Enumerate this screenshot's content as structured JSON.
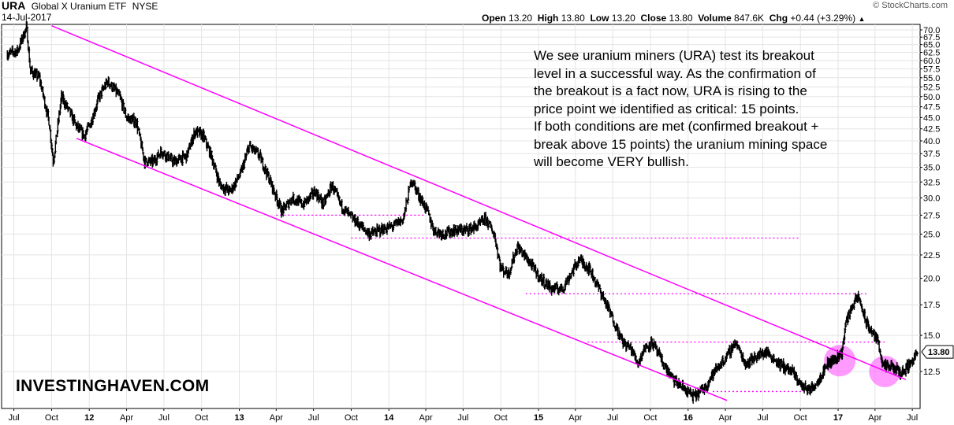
{
  "header": {
    "symbol": "URA",
    "name": "Global X Uranium ETF",
    "exchange": "NYSE",
    "date": "14-Jul-2017",
    "watermark": "© StockCharts.com",
    "stats": [
      {
        "label": "Open",
        "value": "13.20"
      },
      {
        "label": "High",
        "value": "13.80"
      },
      {
        "label": "Low",
        "value": "13.20"
      },
      {
        "label": "Close",
        "value": "13.80"
      },
      {
        "label": "Volume",
        "value": "847.6K"
      },
      {
        "label": "Chg",
        "value": "+0.44 (+3.29%)",
        "arrow": "up-triangle-icon"
      }
    ]
  },
  "annotation": {
    "lines": [
      "We see uranium miners (URA) test its breakout",
      "level in a successful way. As the confirmation of",
      "the breakout is a fact now, URA is rising to the",
      "price point we identified as critical: 15 points.",
      "If both conditions are met (confirmed breakout +",
      "break above 15 points) the uranium mining space",
      "will become VERY bullish."
    ]
  },
  "brand": "INVESTINGHAVEN.COM",
  "colors": {
    "channel": "#ff00ff",
    "circle": "#ff66ff",
    "bars": "#000000",
    "grid": "#e4e4e4"
  },
  "chart_data": {
    "type": "line",
    "description_series": "URA daily price (OHLC bars)",
    "x_ticks": [
      {
        "t": "2011-07-01",
        "label": "Jul",
        "bold": false
      },
      {
        "t": "2011-10-01",
        "label": "Oct",
        "bold": false
      },
      {
        "t": "2012-01-01",
        "label": "12",
        "bold": true
      },
      {
        "t": "2012-04-01",
        "label": "Apr",
        "bold": false
      },
      {
        "t": "2012-07-01",
        "label": "Jul",
        "bold": false
      },
      {
        "t": "2012-10-01",
        "label": "Oct",
        "bold": false
      },
      {
        "t": "2013-01-01",
        "label": "13",
        "bold": true
      },
      {
        "t": "2013-04-01",
        "label": "Apr",
        "bold": false
      },
      {
        "t": "2013-07-01",
        "label": "Jul",
        "bold": false
      },
      {
        "t": "2013-10-01",
        "label": "Oct",
        "bold": false
      },
      {
        "t": "2014-01-01",
        "label": "14",
        "bold": true
      },
      {
        "t": "2014-04-01",
        "label": "Apr",
        "bold": false
      },
      {
        "t": "2014-07-01",
        "label": "Jul",
        "bold": false
      },
      {
        "t": "2014-10-01",
        "label": "Oct",
        "bold": false
      },
      {
        "t": "2015-01-01",
        "label": "15",
        "bold": true
      },
      {
        "t": "2015-04-01",
        "label": "Apr",
        "bold": false
      },
      {
        "t": "2015-07-01",
        "label": "Jul",
        "bold": false
      },
      {
        "t": "2015-10-01",
        "label": "Oct",
        "bold": false
      },
      {
        "t": "2016-01-01",
        "label": "16",
        "bold": true
      },
      {
        "t": "2016-04-01",
        "label": "Apr",
        "bold": false
      },
      {
        "t": "2016-07-01",
        "label": "Jul",
        "bold": false
      },
      {
        "t": "2016-10-01",
        "label": "Oct",
        "bold": false
      },
      {
        "t": "2017-01-01",
        "label": "17",
        "bold": true
      },
      {
        "t": "2017-04-01",
        "label": "Apr",
        "bold": false
      },
      {
        "t": "2017-07-01",
        "label": "Jul",
        "bold": false
      }
    ],
    "y_ticks": [
      "70.0",
      "67.5",
      "65.0",
      "62.5",
      "60.0",
      "57.5",
      "55.0",
      "52.5",
      "50.0",
      "47.5",
      "45.0",
      "42.5",
      "40.0",
      "37.5",
      "35.0",
      "32.5",
      "30.0",
      "27.5",
      "25.0",
      "22.5",
      "20.0",
      "17.5",
      "15.0",
      "12.5"
    ],
    "y_scale": "log",
    "ylim": [
      10.8,
      71.5
    ],
    "last_price_label": "13.80",
    "price_anchors": [
      [
        "2011-06-15",
        62
      ],
      [
        "2011-07-10",
        63
      ],
      [
        "2011-08-01",
        71
      ],
      [
        "2011-08-10",
        57
      ],
      [
        "2011-09-01",
        55
      ],
      [
        "2011-09-25",
        44
      ],
      [
        "2011-10-05",
        36
      ],
      [
        "2011-10-25",
        50
      ],
      [
        "2011-11-15",
        46
      ],
      [
        "2011-12-01",
        43
      ],
      [
        "2011-12-20",
        41
      ],
      [
        "2012-01-05",
        44
      ],
      [
        "2012-01-25",
        50
      ],
      [
        "2012-02-15",
        54
      ],
      [
        "2012-03-01",
        52
      ],
      [
        "2012-03-15",
        50
      ],
      [
        "2012-04-01",
        45
      ],
      [
        "2012-04-25",
        44
      ],
      [
        "2012-05-15",
        36
      ],
      [
        "2012-06-05",
        36
      ],
      [
        "2012-06-25",
        38
      ],
      [
        "2012-07-25",
        36
      ],
      [
        "2012-08-25",
        37
      ],
      [
        "2012-09-15",
        42
      ],
      [
        "2012-10-05",
        41
      ],
      [
        "2012-10-25",
        37
      ],
      [
        "2012-11-15",
        32
      ],
      [
        "2012-12-10",
        31
      ],
      [
        "2013-01-05",
        34
      ],
      [
        "2013-01-25",
        39
      ],
      [
        "2013-02-20",
        37
      ],
      [
        "2013-03-15",
        33
      ],
      [
        "2013-04-15",
        28
      ],
      [
        "2013-05-10",
        30
      ],
      [
        "2013-06-05",
        29
      ],
      [
        "2013-07-05",
        31
      ],
      [
        "2013-07-25",
        29
      ],
      [
        "2013-08-15",
        32
      ],
      [
        "2013-09-05",
        29
      ],
      [
        "2013-09-25",
        27.5
      ],
      [
        "2013-10-25",
        26
      ],
      [
        "2013-11-15",
        25
      ],
      [
        "2013-12-10",
        25.5
      ],
      [
        "2014-01-10",
        26
      ],
      [
        "2014-02-05",
        27
      ],
      [
        "2014-02-25",
        33
      ],
      [
        "2014-03-10",
        31
      ],
      [
        "2014-04-05",
        28
      ],
      [
        "2014-04-20",
        25.5
      ],
      [
        "2014-05-15",
        25
      ],
      [
        "2014-06-10",
        25.5
      ],
      [
        "2014-07-05",
        25.5
      ],
      [
        "2014-08-05",
        26
      ],
      [
        "2014-08-25",
        27
      ],
      [
        "2014-09-15",
        25
      ],
      [
        "2014-10-01",
        21
      ],
      [
        "2014-10-20",
        20.5
      ],
      [
        "2014-11-10",
        23.5
      ],
      [
        "2014-12-05",
        22
      ],
      [
        "2015-01-05",
        20
      ],
      [
        "2015-02-01",
        19
      ],
      [
        "2015-03-01",
        19
      ],
      [
        "2015-04-10",
        22
      ],
      [
        "2015-05-05",
        21
      ],
      [
        "2015-06-10",
        18
      ],
      [
        "2015-07-05",
        16
      ],
      [
        "2015-07-25",
        14.5
      ],
      [
        "2015-08-15",
        14
      ],
      [
        "2015-09-01",
        13
      ],
      [
        "2015-09-15",
        14
      ],
      [
        "2015-10-05",
        14.5
      ],
      [
        "2015-11-01",
        13
      ],
      [
        "2015-11-25",
        12
      ],
      [
        "2015-12-20",
        11.5
      ],
      [
        "2016-01-15",
        11
      ],
      [
        "2016-02-10",
        11.5
      ],
      [
        "2016-03-05",
        12.5
      ],
      [
        "2016-04-05",
        13.5
      ],
      [
        "2016-04-25",
        14.5
      ],
      [
        "2016-05-20",
        13
      ],
      [
        "2016-06-15",
        13.5
      ],
      [
        "2016-07-10",
        13.8
      ],
      [
        "2016-08-10",
        13
      ],
      [
        "2016-09-10",
        12.5
      ],
      [
        "2016-10-05",
        11.6
      ],
      [
        "2016-10-25",
        11.4
      ],
      [
        "2016-11-15",
        12
      ],
      [
        "2016-12-05",
        13
      ],
      [
        "2016-12-25",
        13.3
      ],
      [
        "2017-01-10",
        13.8
      ],
      [
        "2017-01-20",
        16
      ],
      [
        "2017-02-05",
        17.5
      ],
      [
        "2017-02-20",
        18.2
      ],
      [
        "2017-03-10",
        16
      ],
      [
        "2017-03-25",
        15.2
      ],
      [
        "2017-04-10",
        14.5
      ],
      [
        "2017-04-20",
        12.8
      ],
      [
        "2017-05-10",
        12.8
      ],
      [
        "2017-06-05",
        12.4
      ],
      [
        "2017-06-25",
        13
      ],
      [
        "2017-07-14",
        13.8
      ]
    ],
    "channel_upper": [
      [
        "2011-10-01",
        71.5
      ],
      [
        "2017-06-15",
        12.0
      ]
    ],
    "channel_lower": [
      [
        "2011-12-01",
        40.5
      ],
      [
        "2016-04-05",
        10.8
      ]
    ],
    "support_lines": [
      {
        "y": 27.5,
        "x": [
          "2013-04-01",
          "2014-04-01"
        ]
      },
      {
        "y": 24.5,
        "x": [
          "2013-10-01",
          "2016-10-01"
        ]
      },
      {
        "y": 18.5,
        "x": [
          "2014-12-01",
          "2017-03-15"
        ]
      },
      {
        "y": 14.5,
        "x": [
          "2015-05-01",
          "2017-04-25"
        ]
      },
      {
        "y": 11.3,
        "x": [
          "2016-03-01",
          "2016-10-15"
        ]
      }
    ],
    "highlights": [
      {
        "t": "2017-01-05",
        "y": 13.2
      },
      {
        "t": "2017-04-25",
        "y": 12.5
      }
    ]
  }
}
